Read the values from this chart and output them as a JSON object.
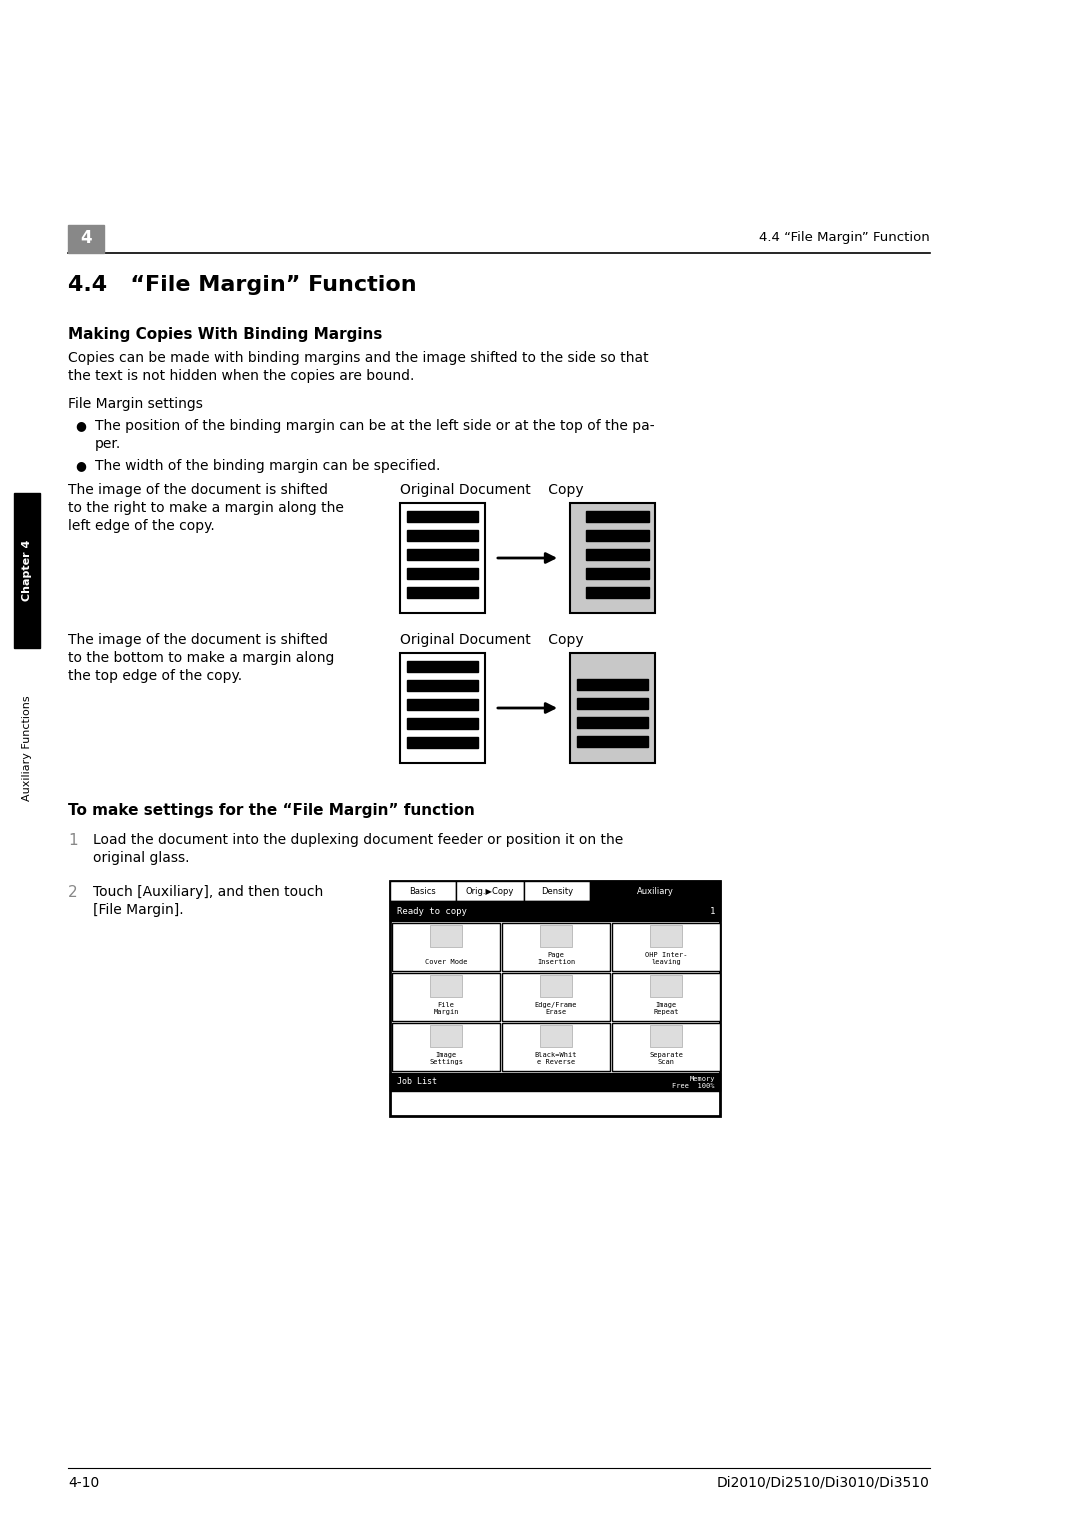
{
  "page_width": 10.8,
  "page_height": 15.28,
  "bg_color": "#ffffff",
  "chapter_num": "4",
  "header_right": "4.4 “File Margin” Function",
  "main_title": "4.4   “File Margin” Function",
  "section_title": "Making Copies With Binding Margins",
  "body_text_line1": "Copies can be made with binding margins and the image shifted to the side so that",
  "body_text_line2": "the text is not hidden when the copies are bound.",
  "body_text2": "File Margin settings",
  "bullet1_line1": "The position of the binding margin can be at the left side or at the top of the pa-",
  "bullet1_line2": "per.",
  "bullet2": "The width of the binding margin can be specified.",
  "left_text1_line1": "The image of the document is shifted",
  "left_text1_line2": "to the right to make a margin along the",
  "left_text1_line3": "left edge of the copy.",
  "left_text2_line1": "The image of the document is shifted",
  "left_text2_line2": "to the bottom to make a margin along",
  "left_text2_line3": "the top edge of the copy.",
  "diagram_label": "Original Document    Copy",
  "section2_title": "To make settings for the “File Margin” function",
  "step1_num": "1",
  "step1_line1": "Load the document into the duplexing document feeder or position it on the",
  "step1_line2": "original glass.",
  "step2_num": "2",
  "step2_line1": "Touch [Auxiliary], and then touch",
  "step2_line2": "[File Margin].",
  "footer_left": "4-10",
  "footer_right": "Di2010/Di2510/Di3010/Di3510",
  "sidebar_chapter": "Chapter 4",
  "sidebar_text": "Auxiliary Functions"
}
